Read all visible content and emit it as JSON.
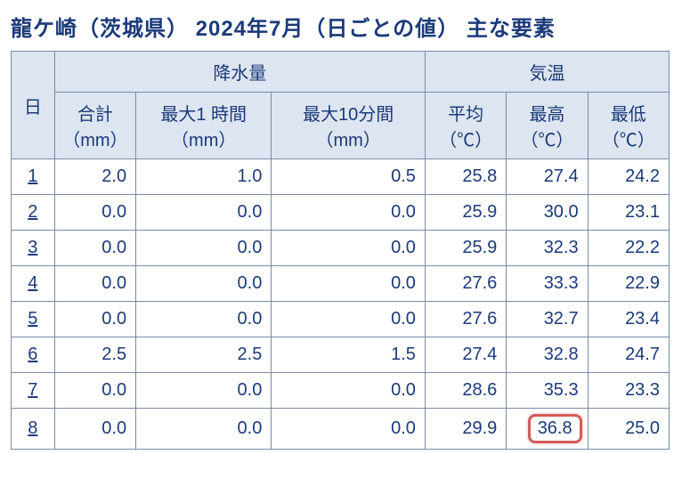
{
  "title": "龍ケ崎（茨城県） 2024年7月（日ごとの値） 主な要素",
  "colors": {
    "text": "#1b3a7a",
    "header_bg": "#dde5f0",
    "border": "#7a8aa8",
    "highlight_border": "#d45a5a",
    "background": "#ffffff"
  },
  "table": {
    "group_headers": {
      "day": "日",
      "precip": "降水量",
      "temp": "気温"
    },
    "sub_headers": {
      "precip_total": "合計\n（mm）",
      "precip_max1h": "最大1 時間\n（mm）",
      "precip_max10m": "最大10分間\n（mm）",
      "temp_avg": "平均\n（℃）",
      "temp_max": "最高\n（℃）",
      "temp_min": "最低\n（℃）"
    },
    "rows": [
      {
        "day": "1",
        "p_total": "2.0",
        "p_1h": "1.0",
        "p_10m": "0.5",
        "t_avg": "25.8",
        "t_max": "27.4",
        "t_min": "24.2",
        "hl": false
      },
      {
        "day": "2",
        "p_total": "0.0",
        "p_1h": "0.0",
        "p_10m": "0.0",
        "t_avg": "25.9",
        "t_max": "30.0",
        "t_min": "23.1",
        "hl": false
      },
      {
        "day": "3",
        "p_total": "0.0",
        "p_1h": "0.0",
        "p_10m": "0.0",
        "t_avg": "25.9",
        "t_max": "32.3",
        "t_min": "22.2",
        "hl": false
      },
      {
        "day": "4",
        "p_total": "0.0",
        "p_1h": "0.0",
        "p_10m": "0.0",
        "t_avg": "27.6",
        "t_max": "33.3",
        "t_min": "22.9",
        "hl": false
      },
      {
        "day": "5",
        "p_total": "0.0",
        "p_1h": "0.0",
        "p_10m": "0.0",
        "t_avg": "27.6",
        "t_max": "32.7",
        "t_min": "23.4",
        "hl": false
      },
      {
        "day": "6",
        "p_total": "2.5",
        "p_1h": "2.5",
        "p_10m": "1.5",
        "t_avg": "27.4",
        "t_max": "32.8",
        "t_min": "24.7",
        "hl": false
      },
      {
        "day": "7",
        "p_total": "0.0",
        "p_1h": "0.0",
        "p_10m": "0.0",
        "t_avg": "28.6",
        "t_max": "35.3",
        "t_min": "23.3",
        "hl": false
      },
      {
        "day": "8",
        "p_total": "0.0",
        "p_1h": "0.0",
        "p_10m": "0.0",
        "t_avg": "29.9",
        "t_max": "36.8",
        "t_min": "25.0",
        "hl": true
      }
    ]
  }
}
